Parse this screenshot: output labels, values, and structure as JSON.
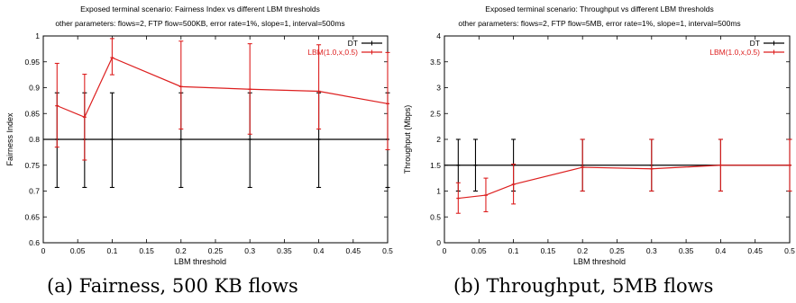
{
  "colors": {
    "dt": "#000000",
    "lbm": "#dd1f1f",
    "axis": "#000000"
  },
  "chart_data": [
    {
      "type": "line",
      "title": "Exposed terminal scenario: Fairness Index vs different LBM thresholds",
      "subtitle": "other parameters: flows=2, FTP flow=500KB, error rate=1%, slope=1, interval=500ms",
      "xlabel": "LBM threshold",
      "ylabel": "Fairness Index",
      "caption": "(a) Fairness, 500 KB flows",
      "xlim": [
        0,
        0.5
      ],
      "ylim": [
        0.6,
        1.0
      ],
      "xticks": [
        0,
        0.05,
        0.1,
        0.15,
        0.2,
        0.25,
        0.3,
        0.35,
        0.4,
        0.45,
        0.5
      ],
      "xtick_labels": [
        "0",
        "0.05",
        "0.1",
        "0.15",
        "0.2",
        "0.25",
        "0.3",
        "0.35",
        "0.4",
        "0.45",
        "0.5"
      ],
      "yticks": [
        0.6,
        0.65,
        0.7,
        0.75,
        0.8,
        0.85,
        0.9,
        0.95,
        1.0
      ],
      "ytick_labels": [
        "0.6",
        "0.65",
        "0.7",
        "0.75",
        "0.8",
        "0.85",
        "0.9",
        "0.95",
        "1"
      ],
      "grid": false,
      "legend_position": "top-right",
      "series": [
        {
          "name": "DT",
          "style": "hline-errorbars",
          "x": [
            0.02,
            0.06,
            0.1,
            0.2,
            0.3,
            0.4,
            0.5
          ],
          "y": [
            0.8,
            0.8,
            0.8,
            0.8,
            0.8,
            0.8,
            0.8
          ],
          "err_low": [
            0.707,
            0.707,
            0.707,
            0.707,
            0.707,
            0.707,
            0.707
          ],
          "err_high": [
            0.89,
            0.89,
            0.89,
            0.89,
            0.89,
            0.89,
            0.89
          ]
        },
        {
          "name": "LBM(1.0,x,0.5)",
          "style": "line-errorbars",
          "x": [
            0.02,
            0.06,
            0.1,
            0.2,
            0.3,
            0.4,
            0.5
          ],
          "y": [
            0.865,
            0.843,
            0.958,
            0.902,
            0.897,
            0.893,
            0.869
          ],
          "err_low": [
            0.785,
            0.76,
            0.925,
            0.82,
            0.81,
            0.82,
            0.78
          ],
          "err_high": [
            0.947,
            0.926,
            0.995,
            0.99,
            0.985,
            0.983,
            0.968
          ]
        }
      ]
    },
    {
      "type": "line",
      "title": "Exposed terminal scenario: Throughput vs different LBM thresholds",
      "subtitle": "other parameters: flows=2, FTP flow=5MB, error rate=1%, slope=1, interval=500ms",
      "xlabel": "LBM threshold",
      "ylabel": "Throughput (Mbps)",
      "caption": "(b) Throughput, 5MB flows",
      "xlim": [
        0,
        0.5
      ],
      "ylim": [
        0,
        4
      ],
      "xticks": [
        0,
        0.05,
        0.1,
        0.15,
        0.2,
        0.25,
        0.3,
        0.35,
        0.4,
        0.45,
        0.5
      ],
      "xtick_labels": [
        "0",
        "0.05",
        "0.1",
        "0.15",
        "0.2",
        "0.25",
        "0.3",
        "0.35",
        "0.4",
        "0.45",
        "0.5"
      ],
      "yticks": [
        0,
        0.5,
        1,
        1.5,
        2,
        2.5,
        3,
        3.5,
        4
      ],
      "ytick_labels": [
        "0",
        "0.5",
        "1",
        "1.5",
        "2",
        "2.5",
        "3",
        "3.5",
        "4"
      ],
      "grid": false,
      "legend_position": "top-right",
      "series": [
        {
          "name": "DT",
          "style": "hline-errorbars",
          "x": [
            0.02,
            0.045,
            0.1,
            0.2,
            0.3,
            0.4,
            0.5
          ],
          "y": [
            1.5,
            1.5,
            1.5,
            1.5,
            1.5,
            1.5,
            1.5
          ],
          "err_low": [
            1.0,
            1.0,
            1.0,
            1.0,
            1.0,
            1.0,
            1.0
          ],
          "err_high": [
            2.0,
            2.0,
            2.0,
            2.0,
            2.0,
            2.0,
            2.0
          ]
        },
        {
          "name": "LBM(1.0,x,0.5)",
          "style": "line-errorbars",
          "x": [
            0.02,
            0.06,
            0.1,
            0.2,
            0.3,
            0.4,
            0.5
          ],
          "y": [
            0.86,
            0.92,
            1.13,
            1.46,
            1.43,
            1.5,
            1.5
          ],
          "err_low": [
            0.57,
            0.6,
            0.75,
            1.0,
            1.0,
            1.0,
            1.0
          ],
          "err_high": [
            1.16,
            1.25,
            1.52,
            2.0,
            2.0,
            2.0,
            2.0
          ]
        }
      ]
    }
  ]
}
